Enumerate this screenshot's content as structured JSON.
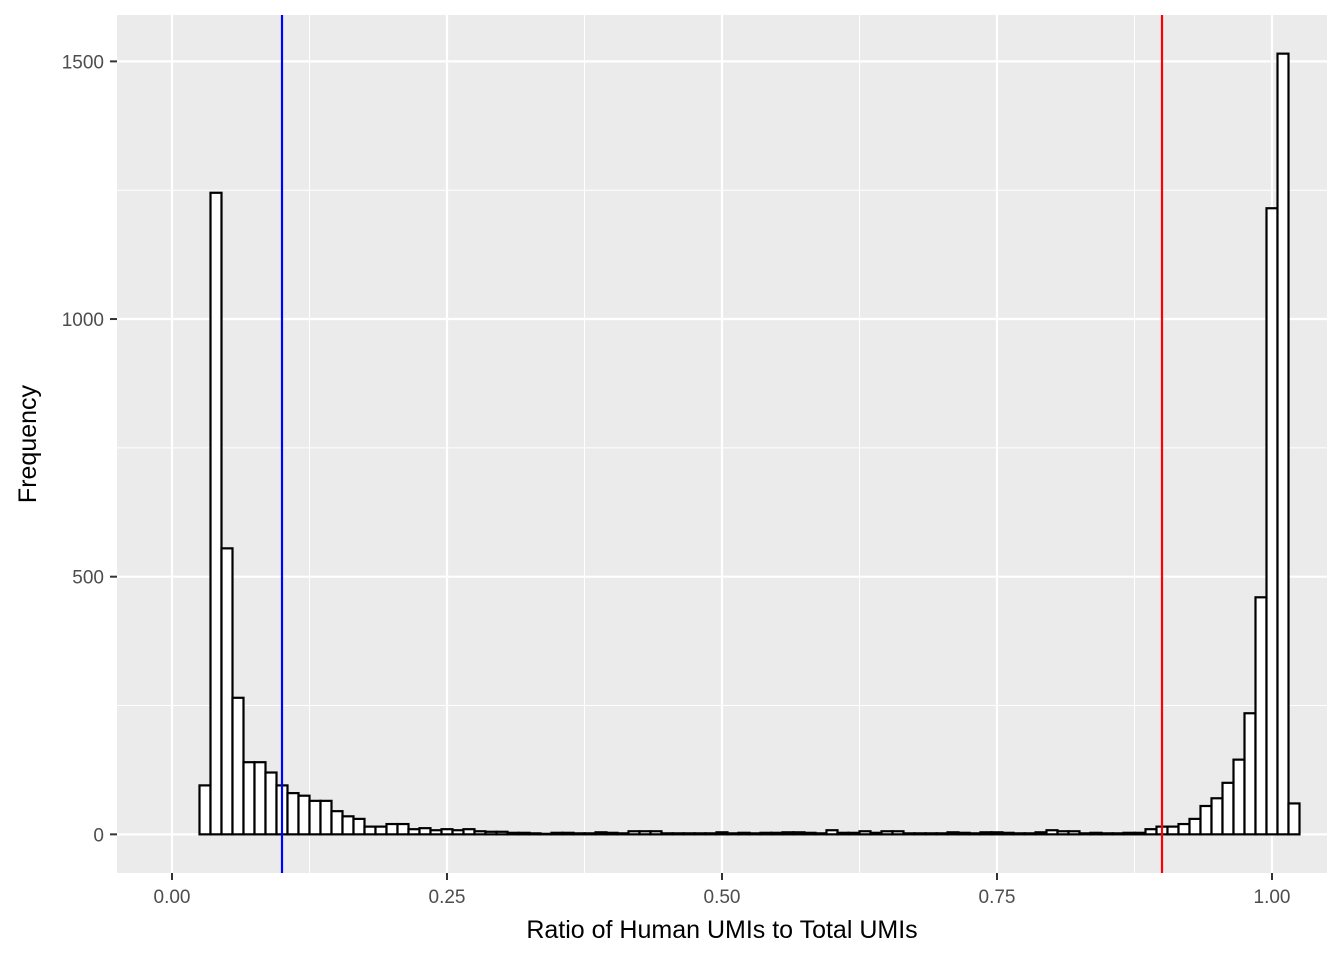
{
  "chart_data": {
    "type": "bar",
    "subtype": "histogram",
    "xlabel": "Ratio of Human UMIs to Total UMIs",
    "ylabel": "Frequency",
    "xlim": [
      -0.05,
      1.05
    ],
    "ylim": [
      -75,
      1590
    ],
    "x_ticks": [
      0.0,
      0.25,
      0.5,
      0.75,
      1.0
    ],
    "x_tick_labels": [
      "0.00",
      "0.25",
      "0.50",
      "0.75",
      "1.00"
    ],
    "y_ticks": [
      0,
      500,
      1000,
      1500
    ],
    "y_tick_labels": [
      "0",
      "500",
      "1000",
      "1500"
    ],
    "grid": true,
    "bin_width": 0.01,
    "bin_start": 0.005,
    "counts": [
      0,
      0,
      95,
      1245,
      555,
      265,
      140,
      140,
      120,
      95,
      80,
      75,
      65,
      65,
      45,
      35,
      30,
      15,
      15,
      20,
      20,
      10,
      12,
      8,
      10,
      8,
      10,
      6,
      5,
      5,
      3,
      3,
      2,
      1,
      3,
      3,
      2,
      2,
      4,
      3,
      2,
      6,
      6,
      6,
      2,
      2,
      2,
      2,
      2,
      4,
      2,
      3,
      2,
      3,
      3,
      4,
      4,
      3,
      2,
      8,
      3,
      3,
      6,
      3,
      6,
      6,
      2,
      2,
      2,
      2,
      4,
      3,
      2,
      4,
      4,
      3,
      2,
      2,
      4,
      8,
      6,
      6,
      2,
      3,
      2,
      2,
      3,
      3,
      10,
      15,
      15,
      20,
      30,
      55,
      70,
      100,
      145,
      235,
      460,
      1215,
      1515,
      60,
      0
    ],
    "vlines": [
      {
        "x": 0.1,
        "color": "#0000ff"
      },
      {
        "x": 0.9,
        "color": "#ff0000"
      }
    ],
    "colors": {
      "panel": "#ebebeb",
      "grid_major": "#ffffff",
      "bar_fill": "#ffffff",
      "bar_outline": "#000000"
    }
  }
}
